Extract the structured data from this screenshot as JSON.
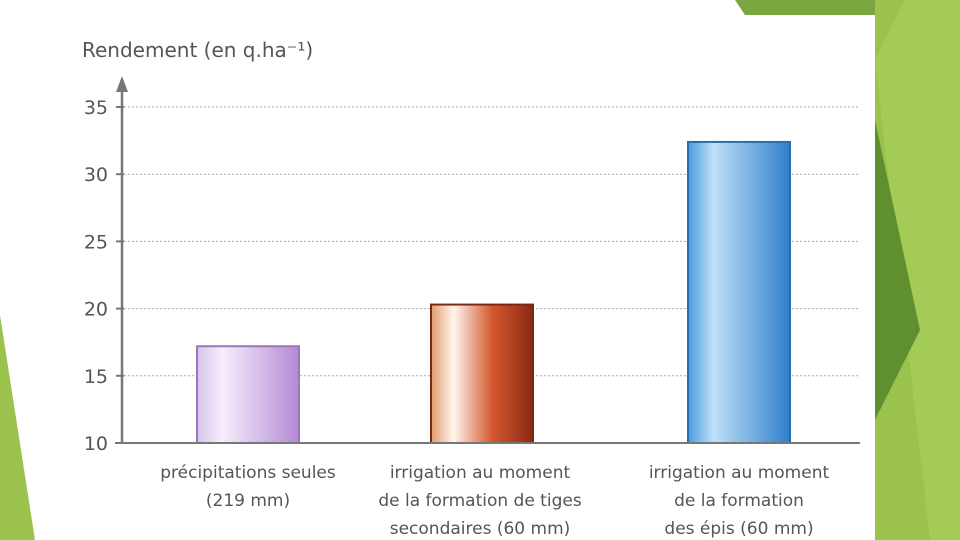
{
  "chart_data": {
    "type": "bar",
    "title": "",
    "ylabel": "Rendement (en q.ha⁻¹)",
    "xlabel": "",
    "ylim": [
      10,
      35
    ],
    "yticks": [
      10,
      15,
      20,
      25,
      30,
      35
    ],
    "grid": true,
    "categories": [
      [
        "précipitations seules",
        "(219 mm)"
      ],
      [
        "irrigation au moment",
        "de la formation de tiges",
        "secondaires (60 mm)"
      ],
      [
        "irrigation au moment",
        "de la formation",
        "des épis (60 mm)"
      ]
    ],
    "values": [
      17.2,
      20.3,
      32.4
    ],
    "colors": [
      "#b98fd6",
      "#c9472a",
      "#3d8ed8"
    ]
  },
  "slide": {
    "accent_colors": [
      "#8fbc45",
      "#6f9a3a",
      "#a3c85a"
    ]
  }
}
